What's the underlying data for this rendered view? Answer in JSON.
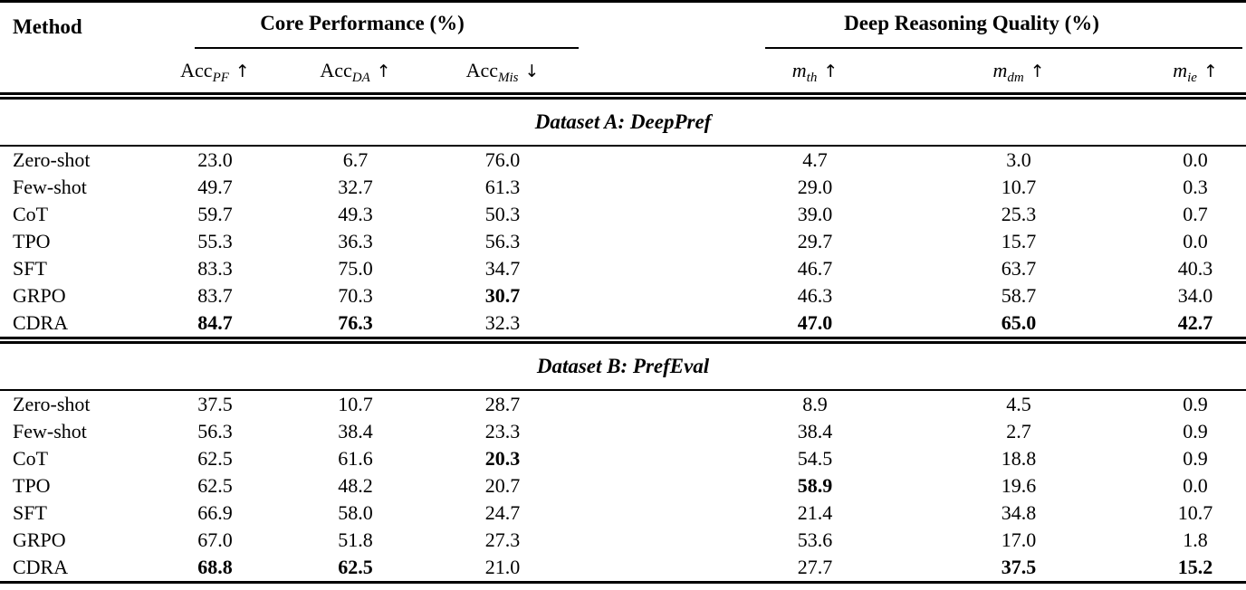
{
  "header": {
    "method_label": "Method",
    "groups": [
      {
        "label": "Core Performance (%)"
      },
      {
        "label": "Deep Reasoning Quality (%)"
      }
    ],
    "metrics": [
      {
        "base": "Acc",
        "sub": "PF",
        "arrow": "↑",
        "italic": false
      },
      {
        "base": "Acc",
        "sub": "DA",
        "arrow": "↑",
        "italic": false
      },
      {
        "base": "Acc",
        "sub": "Mis",
        "arrow": "↓",
        "italic": false
      },
      {
        "base": "m",
        "sub": "th",
        "arrow": "↑",
        "italic": true
      },
      {
        "base": "m",
        "sub": "dm",
        "arrow": "↑",
        "italic": true
      },
      {
        "base": "m",
        "sub": "ie",
        "arrow": "↑",
        "italic": true
      }
    ]
  },
  "sections": [
    {
      "title": "Dataset A: DeepPref",
      "rows": [
        {
          "method": "Zero-shot",
          "values": [
            "23.0",
            "6.7",
            "76.0",
            "4.7",
            "3.0",
            "0.0"
          ],
          "bold": []
        },
        {
          "method": "Few-shot",
          "values": [
            "49.7",
            "32.7",
            "61.3",
            "29.0",
            "10.7",
            "0.3"
          ],
          "bold": []
        },
        {
          "method": "CoT",
          "values": [
            "59.7",
            "49.3",
            "50.3",
            "39.0",
            "25.3",
            "0.7"
          ],
          "bold": []
        },
        {
          "method": "TPO",
          "values": [
            "55.3",
            "36.3",
            "56.3",
            "29.7",
            "15.7",
            "0.0"
          ],
          "bold": []
        },
        {
          "method": "SFT",
          "values": [
            "83.3",
            "75.0",
            "34.7",
            "46.7",
            "63.7",
            "40.3"
          ],
          "bold": []
        },
        {
          "method": "GRPO",
          "values": [
            "83.7",
            "70.3",
            "30.7",
            "46.3",
            "58.7",
            "34.0"
          ],
          "bold": [
            2
          ]
        },
        {
          "method": "CDRA",
          "values": [
            "84.7",
            "76.3",
            "32.3",
            "47.0",
            "65.0",
            "42.7"
          ],
          "bold": [
            0,
            1,
            3,
            4,
            5
          ]
        }
      ]
    },
    {
      "title": "Dataset B: PrefEval",
      "rows": [
        {
          "method": "Zero-shot",
          "values": [
            "37.5",
            "10.7",
            "28.7",
            "8.9",
            "4.5",
            "0.9"
          ],
          "bold": []
        },
        {
          "method": "Few-shot",
          "values": [
            "56.3",
            "38.4",
            "23.3",
            "38.4",
            "2.7",
            "0.9"
          ],
          "bold": []
        },
        {
          "method": "CoT",
          "values": [
            "62.5",
            "61.6",
            "20.3",
            "54.5",
            "18.8",
            "0.9"
          ],
          "bold": [
            2
          ]
        },
        {
          "method": "TPO",
          "values": [
            "62.5",
            "48.2",
            "20.7",
            "58.9",
            "19.6",
            "0.0"
          ],
          "bold": [
            3
          ]
        },
        {
          "method": "SFT",
          "values": [
            "66.9",
            "58.0",
            "24.7",
            "21.4",
            "34.8",
            "10.7"
          ],
          "bold": []
        },
        {
          "method": "GRPO",
          "values": [
            "67.0",
            "51.8",
            "27.3",
            "53.6",
            "17.0",
            "1.8"
          ],
          "bold": []
        },
        {
          "method": "CDRA",
          "values": [
            "68.8",
            "62.5",
            "21.0",
            "27.7",
            "37.5",
            "15.2"
          ],
          "bold": [
            0,
            1,
            4,
            5
          ]
        }
      ]
    }
  ],
  "colors": {
    "text": "#000000",
    "background": "#ffffff",
    "rule": "#000000"
  }
}
